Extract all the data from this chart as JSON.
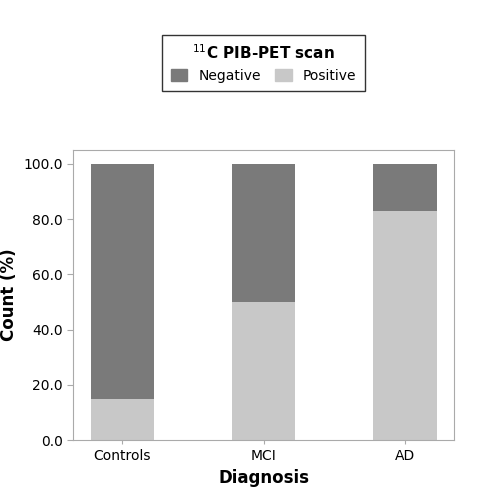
{
  "categories": [
    "Controls",
    "MCI",
    "AD"
  ],
  "positive_values": [
    15.0,
    50.0,
    83.0
  ],
  "negative_values": [
    85.0,
    50.0,
    17.0
  ],
  "color_positive": "#c8c8c8",
  "color_negative": "#7a7a7a",
  "ylabel": "Count (%)",
  "xlabel": "Diagnosis",
  "ylim": [
    0,
    105
  ],
  "yticks": [
    0.0,
    20.0,
    40.0,
    60.0,
    80.0,
    100.0
  ],
  "legend_title": "$^{11}$C PIB-PET scan",
  "legend_negative": "Negative",
  "legend_positive": "Positive",
  "bar_width": 0.45,
  "axis_fontsize": 12,
  "tick_fontsize": 10,
  "legend_fontsize": 10,
  "legend_title_fontsize": 11
}
